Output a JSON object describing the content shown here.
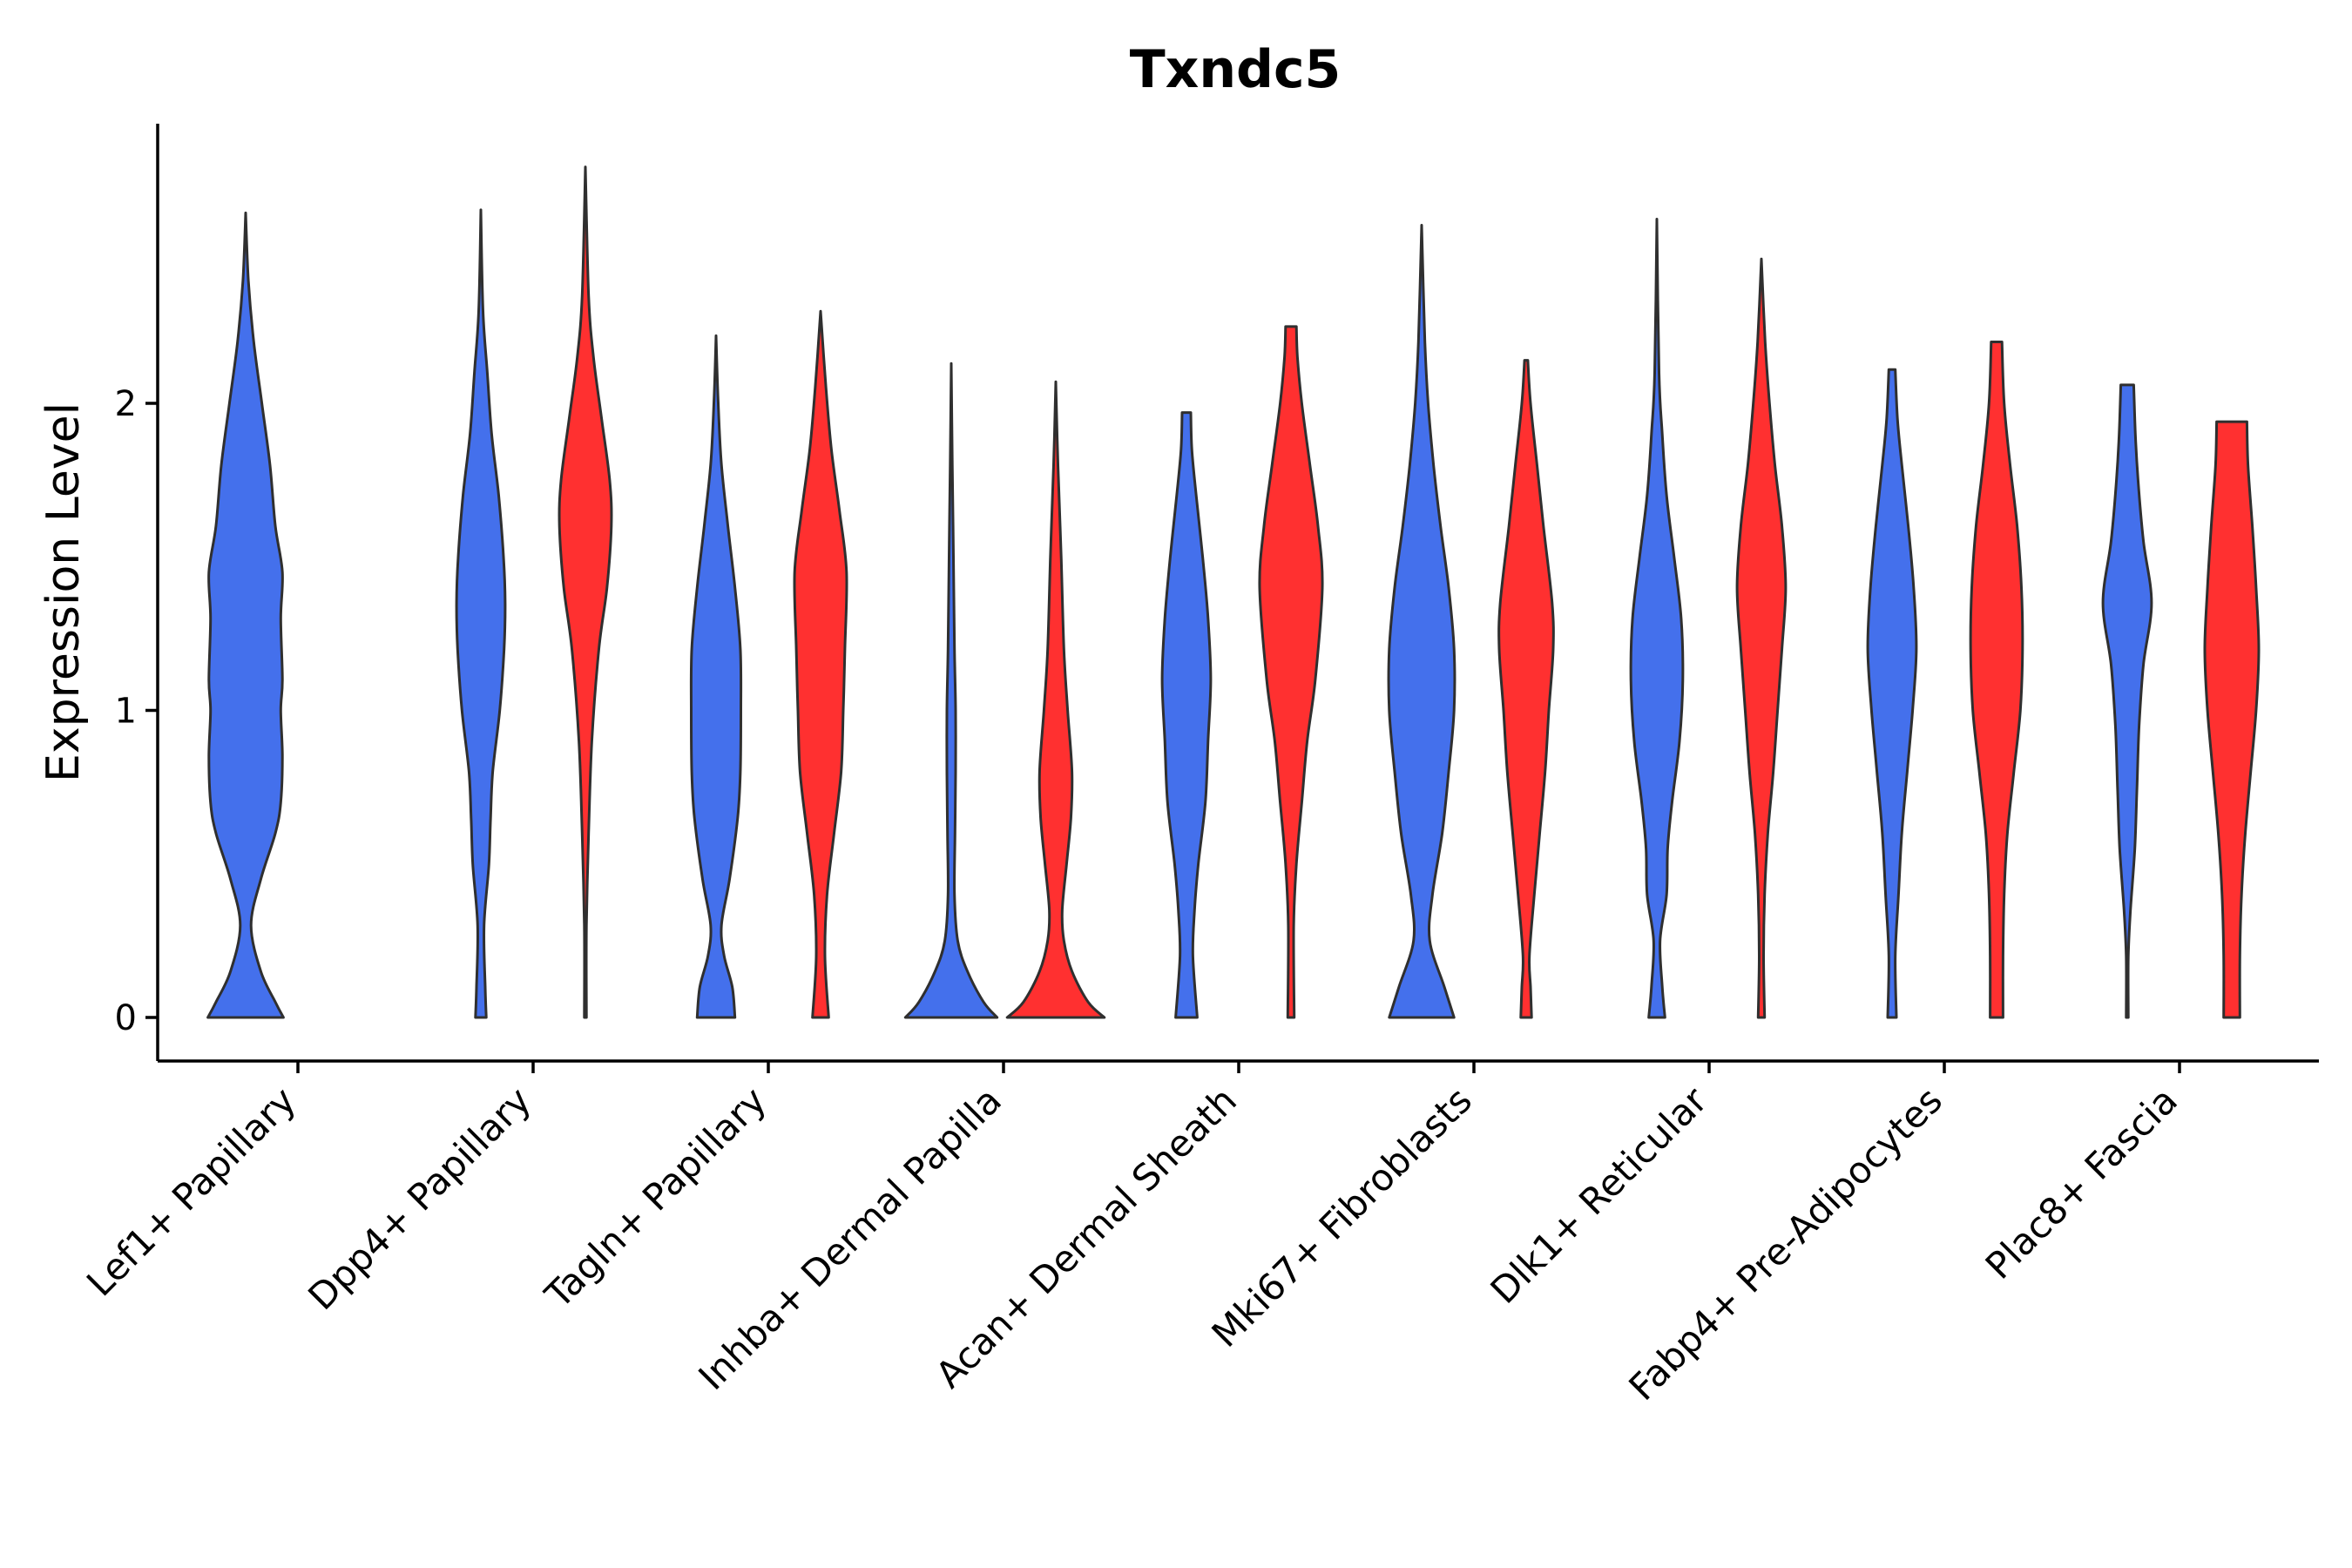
{
  "chart_data": {
    "type": "violin",
    "title": "Txndc5",
    "xlabel": "",
    "ylabel": "Expression Level",
    "ylim": [
      -0.14,
      2.9
    ],
    "yticks": [
      0,
      1,
      2
    ],
    "grid": false,
    "legend": "none",
    "categories": [
      "Lef1+ Papillary",
      "Dpp4+ Papillary",
      "Tagln+ Papillary",
      "Inhba+ Dermal Papilla",
      "Acan+ Dermal Sheath",
      "Mki67+ Fibroblasts",
      "Dlk1+ Reticular",
      "Fabp4+ Pre-Adipocytes",
      "Plac8+ Fascia"
    ],
    "group_colors": [
      "#4470ec",
      "#ff3030"
    ],
    "series": [
      {
        "category": "Lef1+ Papillary",
        "group": 0,
        "max": 2.62,
        "profile": [
          [
            0,
            0.7
          ],
          [
            0.05,
            0.55
          ],
          [
            0.15,
            0.28
          ],
          [
            0.3,
            0.1
          ],
          [
            0.45,
            0.28
          ],
          [
            0.6,
            0.55
          ],
          [
            0.7,
            0.65
          ],
          [
            0.85,
            0.68
          ],
          [
            1.0,
            0.65
          ],
          [
            1.1,
            0.68
          ],
          [
            1.3,
            0.65
          ],
          [
            1.45,
            0.68
          ],
          [
            1.6,
            0.55
          ],
          [
            1.8,
            0.45
          ],
          [
            2.0,
            0.3
          ],
          [
            2.2,
            0.15
          ],
          [
            2.4,
            0.05
          ],
          [
            2.62,
            0.0
          ]
        ]
      },
      {
        "category": "Dpp4+ Papillary",
        "group": 0,
        "max": 2.63,
        "profile": [
          [
            0,
            0.1
          ],
          [
            0.1,
            0.08
          ],
          [
            0.3,
            0.06
          ],
          [
            0.5,
            0.15
          ],
          [
            0.65,
            0.18
          ],
          [
            0.8,
            0.22
          ],
          [
            1.0,
            0.35
          ],
          [
            1.2,
            0.43
          ],
          [
            1.35,
            0.45
          ],
          [
            1.5,
            0.42
          ],
          [
            1.7,
            0.33
          ],
          [
            1.9,
            0.2
          ],
          [
            2.1,
            0.12
          ],
          [
            2.3,
            0.04
          ],
          [
            2.63,
            0.0
          ]
        ]
      },
      {
        "category": "Dpp4+ Papillary",
        "group": 1,
        "max": 2.77,
        "profile": [
          [
            0,
            0.02
          ],
          [
            0.3,
            0.02
          ],
          [
            0.6,
            0.06
          ],
          [
            0.9,
            0.12
          ],
          [
            1.2,
            0.25
          ],
          [
            1.4,
            0.4
          ],
          [
            1.6,
            0.48
          ],
          [
            1.75,
            0.45
          ],
          [
            1.95,
            0.3
          ],
          [
            2.15,
            0.15
          ],
          [
            2.35,
            0.06
          ],
          [
            2.77,
            0.0
          ]
        ]
      },
      {
        "category": "Tagln+ Papillary",
        "group": 0,
        "max": 2.22,
        "profile": [
          [
            0,
            0.35
          ],
          [
            0.1,
            0.3
          ],
          [
            0.2,
            0.15
          ],
          [
            0.3,
            0.1
          ],
          [
            0.45,
            0.25
          ],
          [
            0.65,
            0.4
          ],
          [
            0.8,
            0.45
          ],
          [
            1.0,
            0.46
          ],
          [
            1.2,
            0.45
          ],
          [
            1.4,
            0.35
          ],
          [
            1.6,
            0.22
          ],
          [
            1.8,
            0.1
          ],
          [
            2.0,
            0.04
          ],
          [
            2.22,
            0.0
          ]
        ]
      },
      {
        "category": "Tagln+ Papillary",
        "group": 1,
        "max": 2.3,
        "profile": [
          [
            0,
            0.15
          ],
          [
            0.2,
            0.08
          ],
          [
            0.4,
            0.12
          ],
          [
            0.6,
            0.25
          ],
          [
            0.8,
            0.38
          ],
          [
            1.0,
            0.42
          ],
          [
            1.2,
            0.45
          ],
          [
            1.45,
            0.48
          ],
          [
            1.65,
            0.35
          ],
          [
            1.85,
            0.2
          ],
          [
            2.05,
            0.1
          ],
          [
            2.3,
            0.0
          ]
        ]
      },
      {
        "category": "Inhba+ Dermal Papilla",
        "group": 0,
        "max": 2.13,
        "profile": [
          [
            0,
            0.85
          ],
          [
            0.05,
            0.6
          ],
          [
            0.15,
            0.3
          ],
          [
            0.25,
            0.12
          ],
          [
            0.4,
            0.06
          ],
          [
            0.6,
            0.07
          ],
          [
            0.8,
            0.08
          ],
          [
            1.0,
            0.08
          ],
          [
            1.2,
            0.06
          ],
          [
            1.5,
            0.04
          ],
          [
            1.8,
            0.02
          ],
          [
            2.13,
            0.0
          ]
        ]
      },
      {
        "category": "Inhba+ Dermal Papilla",
        "group": 1,
        "max": 2.07,
        "profile": [
          [
            0,
            0.9
          ],
          [
            0.05,
            0.6
          ],
          [
            0.15,
            0.3
          ],
          [
            0.25,
            0.15
          ],
          [
            0.35,
            0.12
          ],
          [
            0.5,
            0.2
          ],
          [
            0.65,
            0.28
          ],
          [
            0.8,
            0.3
          ],
          [
            1.0,
            0.22
          ],
          [
            1.2,
            0.15
          ],
          [
            1.5,
            0.1
          ],
          [
            1.8,
            0.04
          ],
          [
            2.07,
            0.0
          ]
        ]
      },
      {
        "category": "Acan+ Dermal Sheath",
        "group": 0,
        "max": 1.97,
        "profile": [
          [
            0,
            0.2
          ],
          [
            0.2,
            0.12
          ],
          [
            0.35,
            0.15
          ],
          [
            0.5,
            0.22
          ],
          [
            0.7,
            0.35
          ],
          [
            0.9,
            0.4
          ],
          [
            1.1,
            0.45
          ],
          [
            1.3,
            0.4
          ],
          [
            1.5,
            0.3
          ],
          [
            1.7,
            0.18
          ],
          [
            1.85,
            0.1
          ],
          [
            1.97,
            0.08
          ]
        ]
      },
      {
        "category": "Acan+ Dermal Sheath",
        "group": 1,
        "max": 2.25,
        "profile": [
          [
            0,
            0.06
          ],
          [
            0.3,
            0.05
          ],
          [
            0.5,
            0.1
          ],
          [
            0.7,
            0.2
          ],
          [
            0.9,
            0.3
          ],
          [
            1.1,
            0.45
          ],
          [
            1.4,
            0.58
          ],
          [
            1.6,
            0.5
          ],
          [
            1.8,
            0.35
          ],
          [
            2.0,
            0.2
          ],
          [
            2.15,
            0.12
          ],
          [
            2.25,
            0.1
          ]
        ]
      },
      {
        "category": "Mki67+ Fibroblasts",
        "group": 0,
        "max": 2.58,
        "profile": [
          [
            0,
            0.6
          ],
          [
            0.1,
            0.42
          ],
          [
            0.25,
            0.15
          ],
          [
            0.4,
            0.2
          ],
          [
            0.6,
            0.38
          ],
          [
            0.8,
            0.5
          ],
          [
            1.0,
            0.6
          ],
          [
            1.2,
            0.6
          ],
          [
            1.4,
            0.5
          ],
          [
            1.6,
            0.35
          ],
          [
            1.8,
            0.22
          ],
          [
            2.0,
            0.12
          ],
          [
            2.2,
            0.06
          ],
          [
            2.58,
            0.0
          ]
        ]
      },
      {
        "category": "Mki67+ Fibroblasts",
        "group": 1,
        "max": 2.14,
        "profile": [
          [
            0,
            0.1
          ],
          [
            0.1,
            0.08
          ],
          [
            0.2,
            0.06
          ],
          [
            0.4,
            0.15
          ],
          [
            0.6,
            0.25
          ],
          [
            0.8,
            0.35
          ],
          [
            1.0,
            0.42
          ],
          [
            1.2,
            0.5
          ],
          [
            1.35,
            0.48
          ],
          [
            1.6,
            0.32
          ],
          [
            1.8,
            0.2
          ],
          [
            2.0,
            0.08
          ],
          [
            2.14,
            0.03
          ]
        ]
      },
      {
        "category": "Dlk1+ Reticular",
        "group": 0,
        "max": 2.6,
        "profile": [
          [
            0,
            0.15
          ],
          [
            0.1,
            0.1
          ],
          [
            0.25,
            0.06
          ],
          [
            0.4,
            0.18
          ],
          [
            0.55,
            0.2
          ],
          [
            0.7,
            0.28
          ],
          [
            0.9,
            0.42
          ],
          [
            1.1,
            0.48
          ],
          [
            1.3,
            0.45
          ],
          [
            1.5,
            0.32
          ],
          [
            1.7,
            0.18
          ],
          [
            1.9,
            0.1
          ],
          [
            2.1,
            0.04
          ],
          [
            2.6,
            0.0
          ]
        ]
      },
      {
        "category": "Dlk1+ Reticular",
        "group": 1,
        "max": 2.47,
        "profile": [
          [
            0,
            0.06
          ],
          [
            0.2,
            0.04
          ],
          [
            0.4,
            0.06
          ],
          [
            0.6,
            0.12
          ],
          [
            0.8,
            0.22
          ],
          [
            1.0,
            0.3
          ],
          [
            1.2,
            0.38
          ],
          [
            1.4,
            0.45
          ],
          [
            1.6,
            0.38
          ],
          [
            1.8,
            0.25
          ],
          [
            2.0,
            0.15
          ],
          [
            2.2,
            0.07
          ],
          [
            2.47,
            0.0
          ]
        ]
      },
      {
        "category": "Fabp4+ Pre-Adipocytes",
        "group": 0,
        "max": 2.11,
        "profile": [
          [
            0,
            0.08
          ],
          [
            0.2,
            0.06
          ],
          [
            0.4,
            0.12
          ],
          [
            0.6,
            0.18
          ],
          [
            0.8,
            0.28
          ],
          [
            1.0,
            0.38
          ],
          [
            1.2,
            0.45
          ],
          [
            1.4,
            0.4
          ],
          [
            1.6,
            0.3
          ],
          [
            1.8,
            0.18
          ],
          [
            1.95,
            0.1
          ],
          [
            2.11,
            0.06
          ]
        ]
      },
      {
        "category": "Fabp4+ Pre-Adipocytes",
        "group": 1,
        "max": 2.2,
        "profile": [
          [
            0,
            0.12
          ],
          [
            0.2,
            0.12
          ],
          [
            0.4,
            0.14
          ],
          [
            0.6,
            0.2
          ],
          [
            0.8,
            0.32
          ],
          [
            1.0,
            0.44
          ],
          [
            1.2,
            0.48
          ],
          [
            1.4,
            0.46
          ],
          [
            1.6,
            0.38
          ],
          [
            1.8,
            0.25
          ],
          [
            2.0,
            0.14
          ],
          [
            2.2,
            0.1
          ]
        ]
      },
      {
        "category": "Plac8+ Fascia",
        "group": 0,
        "max": 2.06,
        "profile": [
          [
            0,
            0.02
          ],
          [
            0.2,
            0.02
          ],
          [
            0.35,
            0.06
          ],
          [
            0.55,
            0.14
          ],
          [
            0.75,
            0.18
          ],
          [
            0.95,
            0.22
          ],
          [
            1.15,
            0.3
          ],
          [
            1.35,
            0.45
          ],
          [
            1.55,
            0.3
          ],
          [
            1.75,
            0.2
          ],
          [
            1.9,
            0.15
          ],
          [
            2.06,
            0.12
          ]
        ]
      },
      {
        "category": "Plac8+ Fascia",
        "group": 1,
        "max": 1.94,
        "profile": [
          [
            0,
            0.15
          ],
          [
            0.2,
            0.15
          ],
          [
            0.4,
            0.18
          ],
          [
            0.6,
            0.25
          ],
          [
            0.8,
            0.35
          ],
          [
            1.0,
            0.45
          ],
          [
            1.2,
            0.5
          ],
          [
            1.4,
            0.45
          ],
          [
            1.6,
            0.38
          ],
          [
            1.8,
            0.3
          ],
          [
            1.94,
            0.28
          ]
        ]
      }
    ]
  }
}
